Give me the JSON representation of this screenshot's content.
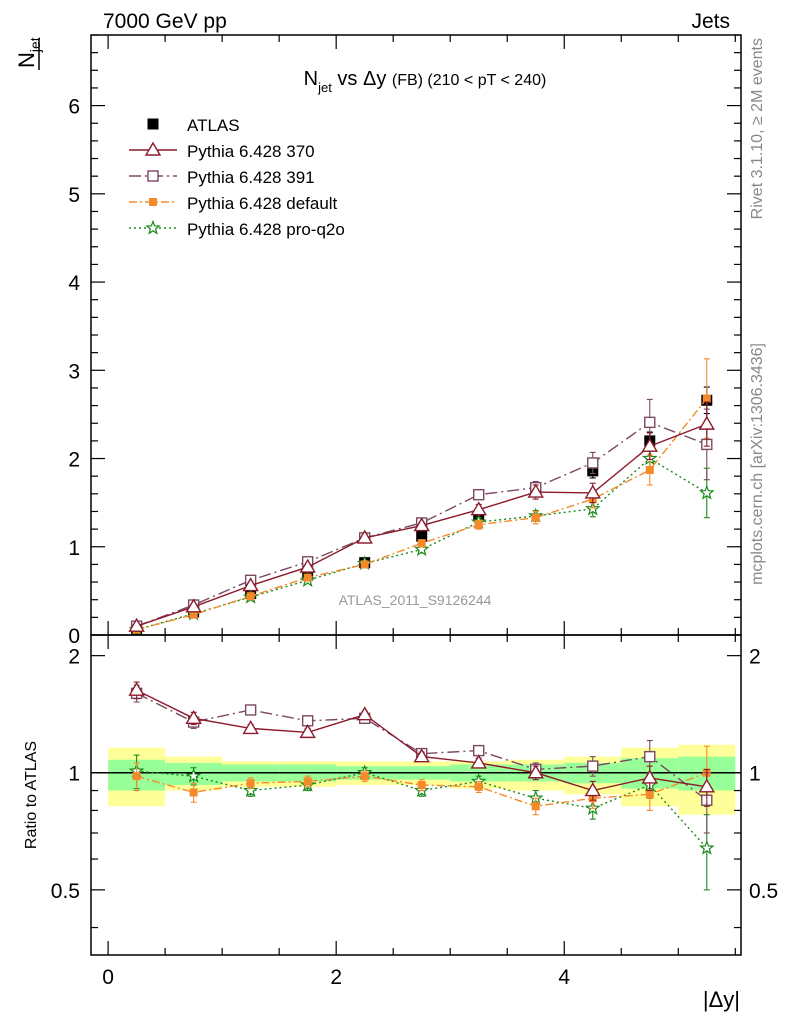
{
  "header": {
    "left": "7000 GeV pp",
    "right": "Jets"
  },
  "side_labels": {
    "rivet": "Rivet 3.1.10, ≥ 2M events",
    "mcplots": "mcplots.cern.ch [arXiv:1306.3436]"
  },
  "watermark": "ATLAS_2011_S9126244",
  "title": {
    "n": "N",
    "n_sub": "jet",
    "vs": " vs Δy ",
    "fb": "(FB)",
    "range": " (210 < pT < 240)"
  },
  "ylabel": {
    "n": "N",
    "n_sub": "jet"
  },
  "ratio_ylabel": "Ratio to ATLAS",
  "xlabel": "|Δy|",
  "colors": {
    "atlas": "#000000",
    "p370": "#8b1a2b",
    "p391": "#7a4a63",
    "pdefault": "#f58a2b",
    "pq2o": "#1a8a1a",
    "band_outer": "#ffff99",
    "band_inner": "#99ff99"
  },
  "chart_data": [
    {
      "type": "scatter",
      "panel": "main",
      "xlim": [
        -0.15,
        5.55
      ],
      "ylim": [
        0,
        6.8
      ],
      "x_ticks": [
        0,
        2,
        4
      ],
      "y_ticks": [
        0,
        1,
        2,
        3,
        4,
        5,
        6
      ],
      "x": [
        0.25,
        0.75,
        1.25,
        1.75,
        2.25,
        2.75,
        3.25,
        3.75,
        4.25,
        4.75,
        5.25
      ],
      "x_bins": [
        [
          0,
          0.5
        ],
        [
          0.5,
          1.0
        ],
        [
          1.0,
          1.5
        ],
        [
          1.5,
          2.0
        ],
        [
          2.0,
          2.5
        ],
        [
          2.5,
          3.0
        ],
        [
          3.0,
          3.5
        ],
        [
          3.5,
          4.0
        ],
        [
          4.0,
          4.5
        ],
        [
          4.5,
          5.0
        ],
        [
          5.0,
          5.5
        ]
      ],
      "legend": {
        "placement": "top-left"
      },
      "series": [
        {
          "name": "ATLAS",
          "key": "atlas",
          "marker": "filled-square",
          "line": "none",
          "values": [
            0.06,
            0.26,
            0.47,
            0.68,
            0.82,
            1.12,
            1.35,
            1.63,
            1.86,
            2.2,
            2.66
          ],
          "errors": [
            0.01,
            0.01,
            0.02,
            0.02,
            0.03,
            0.04,
            0.05,
            0.06,
            0.08,
            0.1,
            0.15
          ]
        },
        {
          "name": "Pythia 6.428 370",
          "key": "p370",
          "marker": "open-triangle",
          "line": "solid",
          "values": [
            0.1,
            0.32,
            0.56,
            0.77,
            1.1,
            1.24,
            1.42,
            1.62,
            1.61,
            2.14,
            2.39
          ],
          "errors": [
            0.01,
            0.01,
            0.01,
            0.02,
            0.03,
            0.04,
            0.06,
            0.08,
            0.11,
            0.15,
            0.25
          ]
        },
        {
          "name": "Pythia 6.428 391",
          "key": "p391",
          "marker": "open-square",
          "line": "dashdot",
          "values": [
            0.1,
            0.34,
            0.62,
            0.83,
            1.1,
            1.27,
            1.59,
            1.67,
            1.95,
            2.41,
            2.16
          ],
          "errors": [
            0.01,
            0.01,
            0.02,
            0.02,
            0.03,
            0.04,
            0.05,
            0.07,
            0.12,
            0.26,
            0.4
          ]
        },
        {
          "name": "Pythia 6.428 default",
          "key": "pdefault",
          "marker": "small-filled-square",
          "line": "dashdot-fine",
          "values": [
            0.06,
            0.23,
            0.44,
            0.65,
            0.8,
            1.04,
            1.25,
            1.33,
            1.54,
            1.87,
            2.68
          ],
          "errors": [
            0.01,
            0.01,
            0.02,
            0.02,
            0.03,
            0.04,
            0.05,
            0.07,
            0.1,
            0.17,
            0.45
          ]
        },
        {
          "name": "Pythia 6.428 pro-q2o",
          "key": "pq2o",
          "marker": "star",
          "line": "dotted",
          "values": [
            0.06,
            0.24,
            0.43,
            0.62,
            0.81,
            0.97,
            1.28,
            1.35,
            1.43,
            2.0,
            1.61
          ],
          "errors": [
            0.01,
            0.01,
            0.02,
            0.02,
            0.03,
            0.04,
            0.05,
            0.06,
            0.09,
            0.14,
            0.28
          ]
        }
      ]
    },
    {
      "type": "scatter",
      "panel": "ratio",
      "xlabel": "|Δy|",
      "ylabel": "Ratio to ATLAS",
      "xlim": [
        -0.15,
        5.55
      ],
      "ylim": [
        0.34,
        2.26
      ],
      "x_ticks": [
        0,
        2,
        4
      ],
      "y_ticks": [
        0.5,
        1,
        2
      ],
      "y_tick_labels": [
        "0.5",
        "1",
        "2"
      ],
      "reference_line": 1,
      "x": [
        0.25,
        0.75,
        1.25,
        1.75,
        2.25,
        2.75,
        3.25,
        3.75,
        4.25,
        4.75,
        5.25
      ],
      "x_bins": [
        [
          0,
          0.5
        ],
        [
          0.5,
          1.0
        ],
        [
          1.0,
          1.5
        ],
        [
          1.5,
          2.0
        ],
        [
          2.0,
          2.5
        ],
        [
          2.5,
          3.0
        ],
        [
          3.0,
          3.5
        ],
        [
          3.5,
          4.0
        ],
        [
          4.0,
          4.5
        ],
        [
          4.5,
          5.0
        ],
        [
          5.0,
          5.5
        ]
      ],
      "band_outer": [
        [
          0.82,
          1.16
        ],
        [
          0.9,
          1.1
        ],
        [
          0.92,
          1.07
        ],
        [
          0.92,
          1.07
        ],
        [
          0.93,
          1.07
        ],
        [
          0.93,
          1.07
        ],
        [
          0.91,
          1.07
        ],
        [
          0.9,
          1.08
        ],
        [
          0.88,
          1.1
        ],
        [
          0.82,
          1.16
        ],
        [
          0.78,
          1.18
        ]
      ],
      "band_inner": [
        [
          0.9,
          1.08
        ],
        [
          0.93,
          1.06
        ],
        [
          0.95,
          1.05
        ],
        [
          0.95,
          1.05
        ],
        [
          0.96,
          1.04
        ],
        [
          0.96,
          1.04
        ],
        [
          0.95,
          1.05
        ],
        [
          0.95,
          1.05
        ],
        [
          0.94,
          1.06
        ],
        [
          0.91,
          1.09
        ],
        [
          0.9,
          1.1
        ]
      ],
      "series": [
        {
          "name": "Pythia 6.428 370",
          "key": "p370",
          "marker": "open-triangle",
          "line": "solid",
          "values": [
            1.63,
            1.38,
            1.3,
            1.27,
            1.41,
            1.1,
            1.06,
            1.0,
            0.9,
            0.97,
            0.92
          ],
          "errors": [
            0.08,
            0.05,
            0.03,
            0.03,
            0.03,
            0.03,
            0.03,
            0.04,
            0.05,
            0.07,
            0.1
          ]
        },
        {
          "name": "Pythia 6.428 391",
          "key": "p391",
          "marker": "open-square",
          "line": "dashdot",
          "values": [
            1.6,
            1.35,
            1.45,
            1.36,
            1.38,
            1.12,
            1.14,
            1.02,
            1.04,
            1.1,
            0.85
          ],
          "errors": [
            0.08,
            0.05,
            0.03,
            0.03,
            0.03,
            0.03,
            0.03,
            0.04,
            0.06,
            0.11,
            0.15
          ]
        },
        {
          "name": "Pythia 6.428 default",
          "key": "pdefault",
          "marker": "small-filled-square",
          "line": "dashdot-fine",
          "values": [
            0.98,
            0.89,
            0.94,
            0.95,
            0.98,
            0.93,
            0.92,
            0.82,
            0.86,
            0.88,
            1.0
          ],
          "errors": [
            0.08,
            0.05,
            0.03,
            0.03,
            0.03,
            0.03,
            0.03,
            0.04,
            0.05,
            0.08,
            0.17
          ]
        },
        {
          "name": "Pythia 6.428 pro-q2o",
          "key": "pq2o",
          "marker": "star",
          "line": "dotted",
          "values": [
            1.01,
            0.98,
            0.9,
            0.93,
            1.0,
            0.9,
            0.95,
            0.86,
            0.81,
            0.93,
            0.64
          ],
          "errors": [
            0.1,
            0.05,
            0.03,
            0.03,
            0.03,
            0.03,
            0.03,
            0.04,
            0.05,
            0.07,
            0.14
          ]
        }
      ]
    }
  ]
}
